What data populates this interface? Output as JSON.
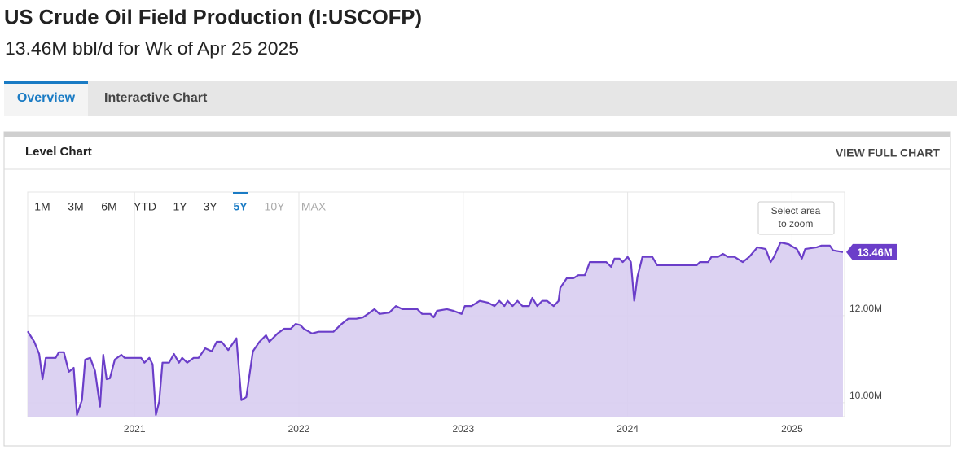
{
  "header": {
    "title": "US Crude Oil Field Production (I:USCOFP)",
    "subtitle": "13.46M bbl/d for Wk of Apr 25 2025"
  },
  "tabs": [
    {
      "label": "Overview",
      "active": true
    },
    {
      "label": "Interactive Chart",
      "active": false
    }
  ],
  "panel": {
    "title": "Level Chart",
    "link": "VIEW FULL CHART"
  },
  "range_buttons": [
    {
      "label": "1M",
      "state": "normal"
    },
    {
      "label": "3M",
      "state": "normal"
    },
    {
      "label": "6M",
      "state": "normal"
    },
    {
      "label": "YTD",
      "state": "normal"
    },
    {
      "label": "1Y",
      "state": "normal"
    },
    {
      "label": "3Y",
      "state": "normal"
    },
    {
      "label": "5Y",
      "state": "active"
    },
    {
      "label": "10Y",
      "state": "disabled"
    },
    {
      "label": "MAX",
      "state": "disabled"
    }
  ],
  "zoom_hint": [
    "Select area",
    "to zoom"
  ],
  "chart_data": {
    "type": "area",
    "color": "#6b3ec9",
    "fill": "#d8cdf1",
    "grid": true,
    "x": [
      2020.35,
      2020.39,
      2020.42,
      2020.44,
      2020.46,
      2020.52,
      2020.54,
      2020.57,
      2020.6,
      2020.63,
      2020.65,
      2020.68,
      2020.7,
      2020.73,
      2020.76,
      2020.79,
      2020.81,
      2020.83,
      2020.85,
      2020.88,
      2020.92,
      2020.94,
      2021.04,
      2021.06,
      2021.09,
      2021.11,
      2021.13,
      2021.15,
      2021.17,
      2021.21,
      2021.24,
      2021.27,
      2021.29,
      2021.32,
      2021.36,
      2021.39,
      2021.43,
      2021.47,
      2021.5,
      2021.53,
      2021.57,
      2021.62,
      2021.65,
      2021.68,
      2021.72,
      2021.76,
      2021.8,
      2021.82,
      2021.87,
      2021.91,
      2021.95,
      2021.98,
      2022.01,
      2022.03,
      2022.08,
      2022.12,
      2022.21,
      2022.26,
      2022.3,
      2022.35,
      2022.39,
      2022.42,
      2022.46,
      2022.49,
      2022.55,
      2022.59,
      2022.63,
      2022.72,
      2022.75,
      2022.8,
      2022.82,
      2022.84,
      2022.9,
      2022.94,
      2022.99,
      2023.01,
      2023.05,
      2023.1,
      2023.15,
      2023.19,
      2023.22,
      2023.25,
      2023.27,
      2023.3,
      2023.33,
      2023.36,
      2023.4,
      2023.42,
      2023.45,
      2023.48,
      2023.51,
      2023.55,
      2023.58,
      2023.59,
      2023.63,
      2023.67,
      2023.7,
      2023.74,
      2023.77,
      2023.87,
      2023.9,
      2023.92,
      2023.95,
      2023.97,
      2024.0,
      2024.02,
      2024.04,
      2024.06,
      2024.09,
      2024.15,
      2024.18,
      2024.42,
      2024.44,
      2024.49,
      2024.51,
      2024.55,
      2024.58,
      2024.61,
      2024.65,
      2024.7,
      2024.74,
      2024.79,
      2024.84,
      2024.87,
      2024.89,
      2024.93,
      2024.98,
      2025.01,
      2025.03,
      2025.06,
      2025.08,
      2025.15,
      2025.18,
      2025.23,
      2025.25,
      2025.31
    ],
    "values": [
      11.64,
      11.4,
      11.12,
      10.54,
      11.03,
      11.03,
      11.16,
      11.16,
      10.71,
      10.8,
      9.72,
      10.06,
      10.99,
      11.03,
      10.73,
      9.91,
      11.1,
      10.54,
      10.56,
      10.99,
      11.1,
      11.03,
      11.03,
      10.92,
      11.03,
      10.88,
      9.72,
      10.02,
      10.92,
      10.92,
      11.12,
      10.92,
      11.03,
      10.92,
      11.03,
      11.03,
      11.25,
      11.18,
      11.4,
      11.4,
      11.21,
      11.48,
      10.06,
      10.13,
      11.18,
      11.4,
      11.55,
      11.4,
      11.59,
      11.7,
      11.7,
      11.81,
      11.78,
      11.7,
      11.59,
      11.63,
      11.63,
      11.81,
      11.93,
      11.93,
      11.96,
      12.04,
      12.15,
      12.04,
      12.07,
      12.22,
      12.15,
      12.15,
      12.04,
      12.04,
      11.96,
      12.11,
      12.15,
      12.11,
      12.04,
      12.22,
      12.22,
      12.34,
      12.3,
      12.22,
      12.34,
      12.22,
      12.34,
      12.22,
      12.34,
      12.22,
      12.22,
      12.41,
      12.22,
      12.34,
      12.34,
      12.22,
      12.34,
      12.64,
      12.86,
      12.86,
      12.93,
      12.93,
      13.23,
      13.23,
      13.12,
      13.31,
      13.31,
      13.23,
      13.35,
      13.23,
      12.34,
      12.9,
      13.35,
      13.35,
      13.16,
      13.16,
      13.23,
      13.23,
      13.35,
      13.35,
      13.42,
      13.35,
      13.35,
      13.23,
      13.35,
      13.57,
      13.53,
      13.23,
      13.35,
      13.68,
      13.64,
      13.57,
      13.53,
      13.31,
      13.53,
      13.57,
      13.61,
      13.61,
      13.5,
      13.46
    ],
    "xlim": [
      2020.35,
      2025.32
    ],
    "xticks": [
      2021,
      2022,
      2023,
      2024,
      2025
    ],
    "ylim": [
      9.68,
      14.84
    ],
    "yticks": [
      {
        "value": 10,
        "label": "10.00M"
      },
      {
        "value": 12,
        "label": "12.00M"
      }
    ],
    "annotation": {
      "value": 13.46,
      "label": "13.46M"
    }
  }
}
